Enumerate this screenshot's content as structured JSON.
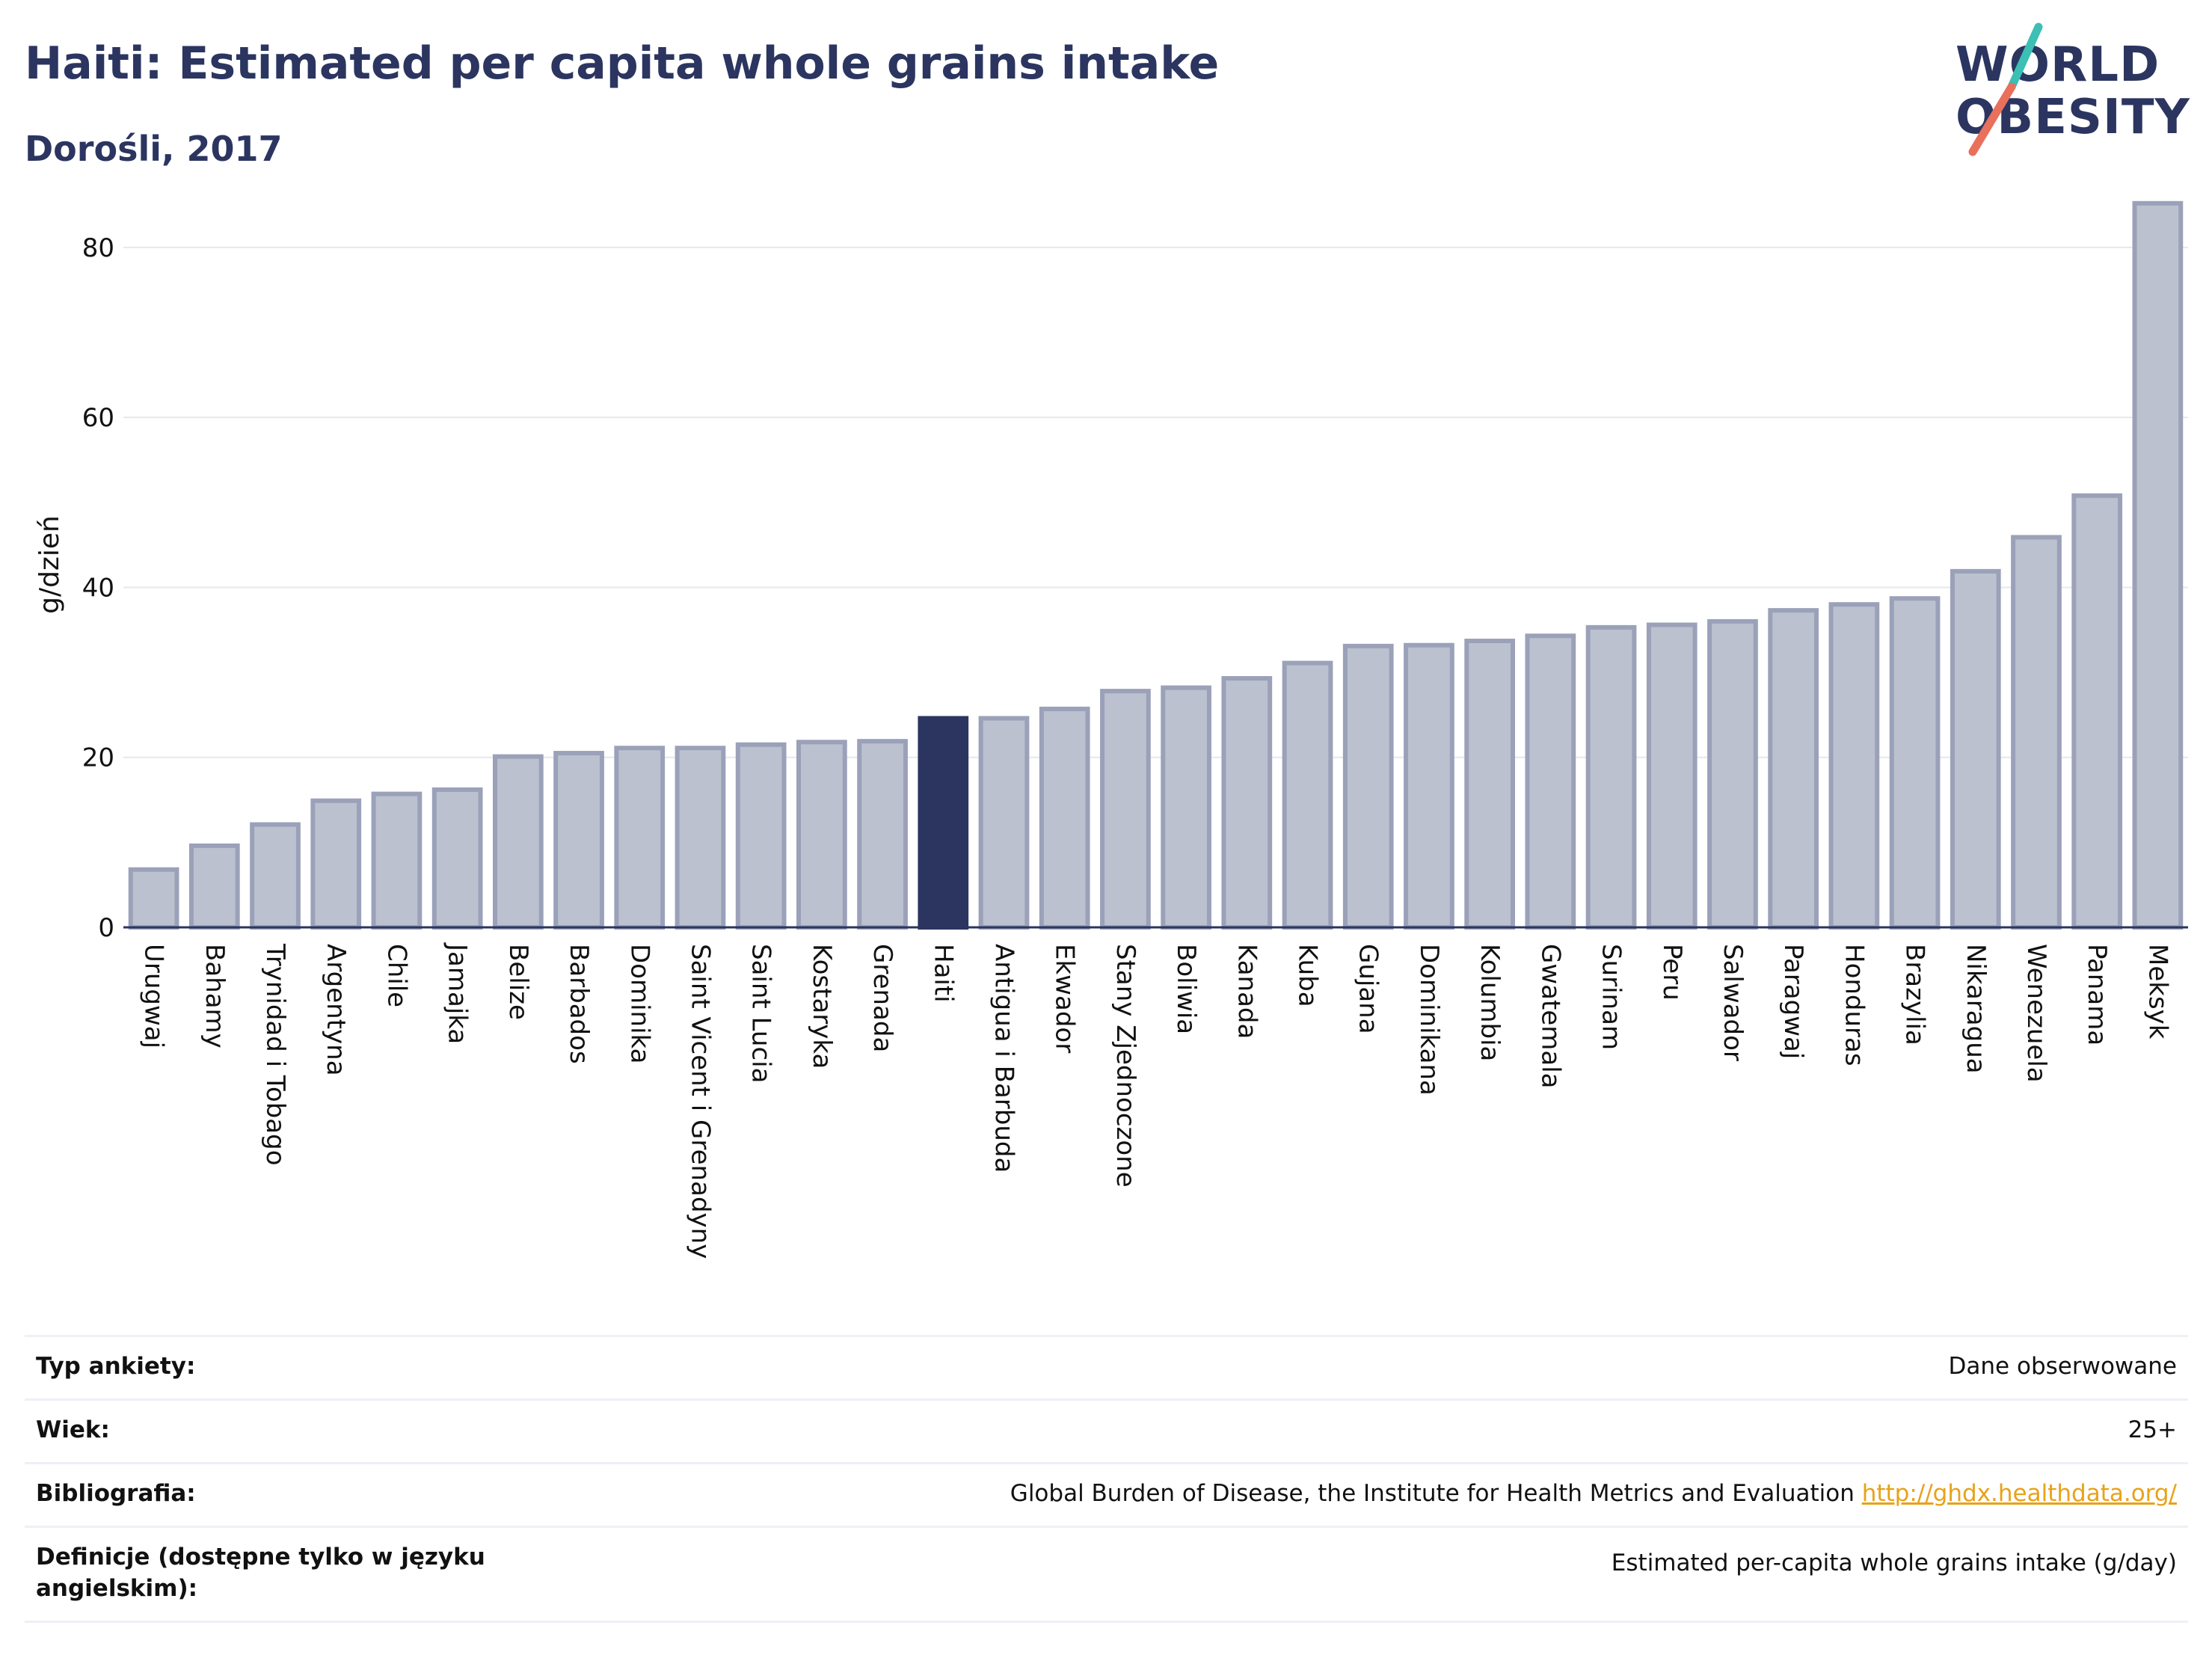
{
  "header": {
    "title": "Haiti: Estimated per capita whole grains intake",
    "subtitle": "Dorośli, 2017"
  },
  "logo": {
    "line1": "WORLD",
    "line2": "OBESITY",
    "accent_colors": [
      "#3cbfb4",
      "#e8705c"
    ]
  },
  "chart_data": {
    "type": "bar",
    "ylabel": "g/dzień",
    "ylim": [
      0,
      88
    ],
    "yticks": [
      0,
      20,
      40,
      60,
      80
    ],
    "grid": true,
    "highlight": "Haiti",
    "colors": {
      "bar": "#bcc1cf",
      "bar_edge": "#9aa1b9",
      "highlight": "#2b3560",
      "axis": "#2b3560",
      "grid": "#e6e8ee"
    },
    "categories": [
      "Urugwaj",
      "Bahamy",
      "Trynidad i Tobago",
      "Argentyna",
      "Chile",
      "Jamajka",
      "Belize",
      "Barbados",
      "Dominika",
      "Saint Vicent i Grenadyny",
      "Saint Lucia",
      "Kostaryka",
      "Grenada",
      "Haiti",
      "Antigua i Barbuda",
      "Ekwador",
      "Stany Zjednoczone",
      "Boliwia",
      "Kanada",
      "Kuba",
      "Gujana",
      "Dominikana",
      "Kolumbia",
      "Gwatemala",
      "Surinam",
      "Peru",
      "Salwador",
      "Paragwaj",
      "Honduras",
      "Brazylia",
      "Nikaragua",
      "Wenezuela",
      "Panama",
      "Meksyk"
    ],
    "values": [
      6.8,
      9.6,
      12.1,
      14.9,
      15.7,
      16.2,
      20.1,
      20.5,
      21.1,
      21.1,
      21.5,
      21.8,
      21.9,
      24.6,
      24.6,
      25.7,
      27.8,
      28.2,
      29.3,
      31.1,
      33.1,
      33.2,
      33.7,
      34.3,
      35.3,
      35.6,
      36.0,
      37.3,
      38.0,
      38.7,
      41.9,
      45.9,
      50.8,
      85.2
    ]
  },
  "meta": [
    {
      "label": "Typ ankiety:",
      "value": "Dane obserwowane",
      "link": ""
    },
    {
      "label": "Wiek:",
      "value": "25+",
      "link": ""
    },
    {
      "label": "Bibliografia:",
      "value": "Global Burden of Disease, the Institute for Health Metrics and Evaluation",
      "link": "http://ghdx.healthdata.org/"
    },
    {
      "label": "Definicje (dostępne tylko w języku angielskim):",
      "value": "Estimated per-capita whole grains intake (g/day)",
      "link": ""
    }
  ]
}
